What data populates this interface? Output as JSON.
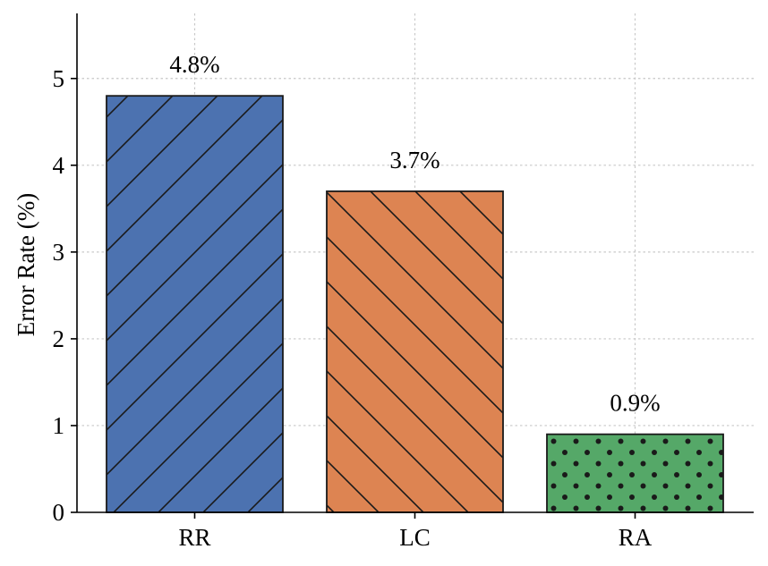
{
  "chart_data": {
    "type": "bar",
    "categories": [
      "RR",
      "LC",
      "RA"
    ],
    "values": [
      4.8,
      3.7,
      0.9
    ],
    "data_labels": [
      "4.8%",
      "3.7%",
      "0.9%"
    ],
    "colors": [
      "#4c72b0",
      "#dd8452",
      "#55a868"
    ],
    "hatches": [
      "diagonal-up",
      "diagonal-down",
      "dots"
    ],
    "title": "",
    "xlabel": "",
    "ylabel": "Error Rate (%)",
    "ylim": [
      0,
      5.75
    ],
    "yticks": [
      0,
      1,
      2,
      3,
      4,
      5
    ],
    "grid": true,
    "legend": "none"
  }
}
